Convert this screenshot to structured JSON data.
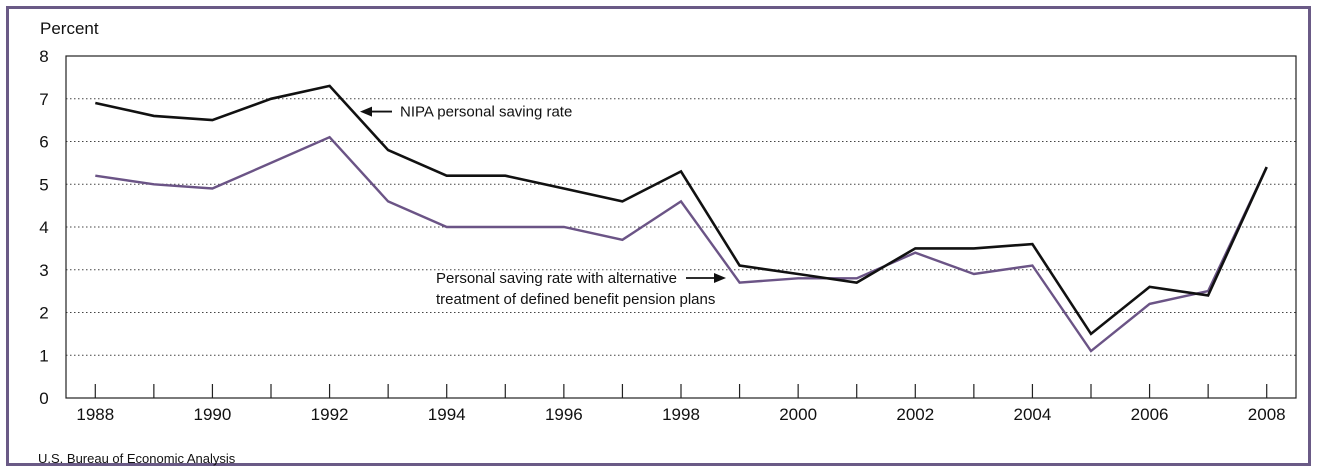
{
  "chart_data": {
    "type": "line",
    "ylabel": "Percent",
    "ylim": [
      0,
      8
    ],
    "yticks": [
      "0",
      "1",
      "2",
      "3",
      "4",
      "5",
      "6",
      "7",
      "8"
    ],
    "xlim": [
      1987.5,
      2008.5
    ],
    "xticks": [
      "1988",
      "1990",
      "1992",
      "1994",
      "1996",
      "1998",
      "2000",
      "2002",
      "2004",
      "2006",
      "2008"
    ],
    "grid": "horizontal dotted",
    "x": [
      1988,
      1989,
      1990,
      1991,
      1992,
      1993,
      1994,
      1995,
      1996,
      1997,
      1998,
      1999,
      2000,
      2001,
      2002,
      2003,
      2004,
      2005,
      2006,
      2007,
      2008
    ],
    "series": [
      {
        "name": "NIPA personal saving rate",
        "color": "#111111",
        "values": [
          6.9,
          6.6,
          6.5,
          7.0,
          7.3,
          5.8,
          5.2,
          5.2,
          4.9,
          4.6,
          5.3,
          3.1,
          2.9,
          2.7,
          3.5,
          3.5,
          3.6,
          1.5,
          2.6,
          2.4,
          5.4
        ]
      },
      {
        "name": "Personal saving rate with alternative treatment of defined benefit pension plans",
        "color": "#6b5486",
        "values": [
          5.2,
          5.0,
          4.9,
          5.5,
          6.1,
          4.6,
          4.0,
          4.0,
          4.0,
          3.7,
          4.6,
          2.7,
          2.8,
          2.8,
          3.4,
          2.9,
          3.1,
          1.1,
          2.2,
          2.5,
          5.4
        ]
      }
    ],
    "annotations": [
      {
        "lines": [
          "NIPA personal saving rate"
        ],
        "series": 0
      },
      {
        "lines": [
          "Personal saving rate with alternative",
          "treatment of defined benefit pension plans"
        ],
        "series": 1
      }
    ],
    "source": "U.S. Bureau of Economic Analysis"
  }
}
